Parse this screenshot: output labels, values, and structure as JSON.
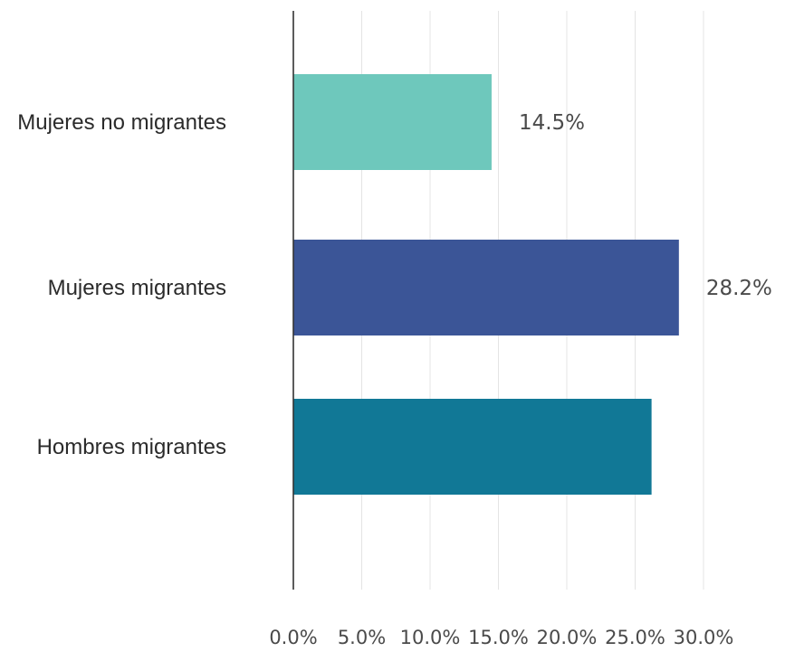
{
  "chart_data": {
    "type": "bar",
    "orientation": "horizontal",
    "title": "",
    "xlabel": "",
    "ylabel": "",
    "categories": [
      "Mujeres no migrantes",
      "Mujeres migrantes",
      "Hombres migrantes"
    ],
    "values": [
      14.5,
      28.2,
      26.2
    ],
    "value_labels": [
      "14.5%",
      "28.2%",
      ""
    ],
    "colors": [
      "#6ec8bc",
      "#3b5597",
      "#117896"
    ],
    "xlim": [
      0,
      30
    ],
    "xticks": [
      0,
      5,
      10,
      15,
      20,
      25,
      30
    ],
    "xtick_labels": [
      "0.0%",
      "5.0%",
      "10.0%",
      "15.0%",
      "20.0%",
      "25.0%",
      "30.0%"
    ],
    "grid": "vertical",
    "legend": "none"
  }
}
